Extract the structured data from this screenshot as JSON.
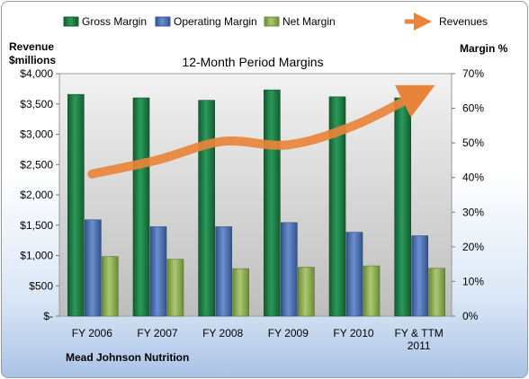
{
  "chart_data": {
    "type": "bar",
    "title": "12-Month Period Margins",
    "company": "Mead Johnson Nutrition",
    "left_axis_label_line1": "Revenue",
    "left_axis_label_line2": "$millions",
    "right_axis_label": "Margin %",
    "categories": [
      [
        "FY 2006"
      ],
      [
        "FY 2007"
      ],
      [
        "FY 2008"
      ],
      [
        "FY 2009"
      ],
      [
        "FY 2010"
      ],
      [
        "FY & TTM",
        "2011"
      ]
    ],
    "left_ticks": [
      "$-",
      "$500",
      "$1,000",
      "$1,500",
      "$2,000",
      "$2,500",
      "$3,000",
      "$3,500",
      "$4,000"
    ],
    "right_ticks": [
      "0%",
      "10%",
      "20%",
      "30%",
      "40%",
      "50%",
      "60%",
      "70%"
    ],
    "ylim_left": [
      0,
      4000
    ],
    "ylim_right": [
      0,
      70
    ],
    "legend_position": "top",
    "grid": false,
    "series": [
      {
        "name": "Gross Margin",
        "axis": "right",
        "kind": "bar",
        "color": "#1f7a45",
        "values": [
          64,
          63,
          62.3,
          65.3,
          63.3,
          63
        ]
      },
      {
        "name": "Operating Margin",
        "axis": "right",
        "kind": "bar",
        "color": "#4a6fb0",
        "values": [
          27.8,
          25.8,
          25.8,
          27,
          24.2,
          23.2
        ]
      },
      {
        "name": "Net Margin",
        "axis": "right",
        "kind": "bar",
        "color": "#8fb150",
        "values": [
          17.2,
          16.4,
          13.7,
          14.1,
          14.5,
          13.8
        ]
      },
      {
        "name": "Revenues",
        "axis": "left",
        "kind": "line",
        "color": "#e8843a",
        "values": [
          2345,
          2576,
          2882,
          2826,
          3141,
          3677
        ]
      }
    ]
  }
}
